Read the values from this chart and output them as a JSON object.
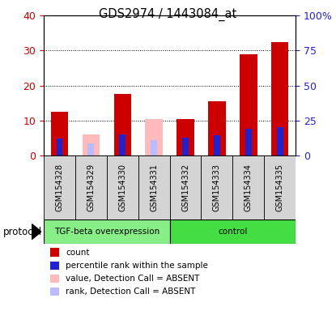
{
  "title": "GDS2974 / 1443084_at",
  "samples": [
    "GSM154328",
    "GSM154329",
    "GSM154330",
    "GSM154331",
    "GSM154332",
    "GSM154333",
    "GSM154334",
    "GSM154335"
  ],
  "group1_label": "TGF-beta overexpression",
  "group2_label": "control",
  "group1_indices": [
    0,
    1,
    2,
    3
  ],
  "group2_indices": [
    4,
    5,
    6,
    7
  ],
  "count_values": [
    12.5,
    null,
    17.5,
    null,
    10.5,
    15.5,
    29.0,
    32.5
  ],
  "percentile_values": [
    12.0,
    null,
    15.0,
    null,
    13.0,
    14.5,
    19.0,
    20.0
  ],
  "absent_value_values": [
    null,
    6.0,
    null,
    10.5,
    null,
    null,
    null,
    null
  ],
  "absent_rank_values": [
    null,
    8.5,
    null,
    10.8,
    null,
    null,
    null,
    null
  ],
  "ylim_left": [
    0,
    40
  ],
  "ylim_right": [
    0,
    100
  ],
  "yticks_left": [
    0,
    10,
    20,
    30,
    40
  ],
  "yticks_right": [
    0,
    25,
    50,
    75,
    100
  ],
  "yticklabels_left": [
    "0",
    "10",
    "20",
    "30",
    "40"
  ],
  "yticklabels_right": [
    "0",
    "25",
    "50",
    "75",
    "100%"
  ],
  "color_count": "#cc0000",
  "color_percentile": "#2222cc",
  "color_absent_value": "#ffbbbb",
  "color_absent_rank": "#bbbbff",
  "color_group1": "#88ee88",
  "color_group2": "#44dd44",
  "bar_width": 0.55,
  "percentile_bar_width": 0.2,
  "protocol_label": "protocol",
  "legend_entries": [
    "count",
    "percentile rank within the sample",
    "value, Detection Call = ABSENT",
    "rank, Detection Call = ABSENT"
  ],
  "legend_colors": [
    "#cc0000",
    "#2222cc",
    "#ffbbbb",
    "#bbbbff"
  ]
}
